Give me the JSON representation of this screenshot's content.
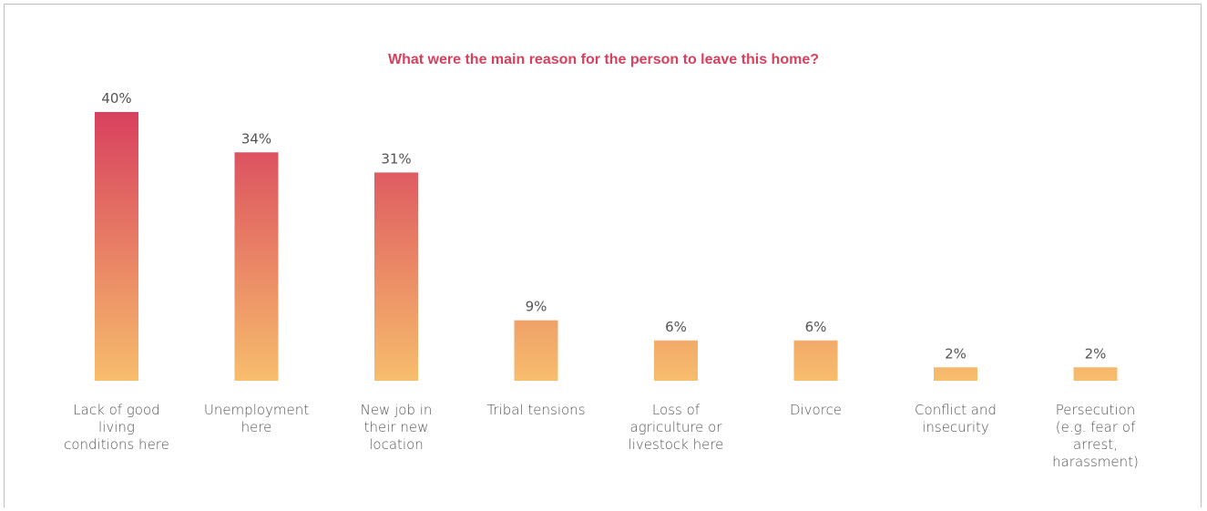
{
  "colors": {
    "title": "#d8405e",
    "bar_top": "#d8405e",
    "bar_bottom": "#f7bd6c",
    "value_label": "#555555",
    "frame": "#bdbdbd"
  },
  "chart_data": {
    "type": "bar",
    "title": "What were the main reason for the person to leave this home?",
    "xlabel": "",
    "ylabel": "",
    "ylim": [
      0,
      40
    ],
    "grid": false,
    "categories": [
      "Lack of good living conditions here",
      "Unemployment here",
      "New job in their new location",
      "Tribal tensions",
      "Loss of agriculture or livestock here",
      "Divorce",
      "Conflict and insecurity",
      "Persecution (e.g. fear of arrest, harassment)"
    ],
    "values": [
      40,
      34,
      31,
      9,
      6,
      6,
      2,
      2
    ],
    "value_labels": [
      "40%",
      "34%",
      "31%",
      "9%",
      "6%",
      "6%",
      "2%",
      "2%"
    ],
    "label_lines": [
      [
        "Lack of good",
        "living",
        "conditions here"
      ],
      [
        "Unemployment",
        "here"
      ],
      [
        "New job in",
        "their new",
        "location"
      ],
      [
        "Tribal tensions"
      ],
      [
        "Loss of",
        "agriculture or",
        "livestock here"
      ],
      [
        "Divorce"
      ],
      [
        "Conflict and",
        "insecurity"
      ],
      [
        "Persecution",
        "(e.g. fear of",
        "arrest,",
        "harassment)"
      ]
    ]
  }
}
